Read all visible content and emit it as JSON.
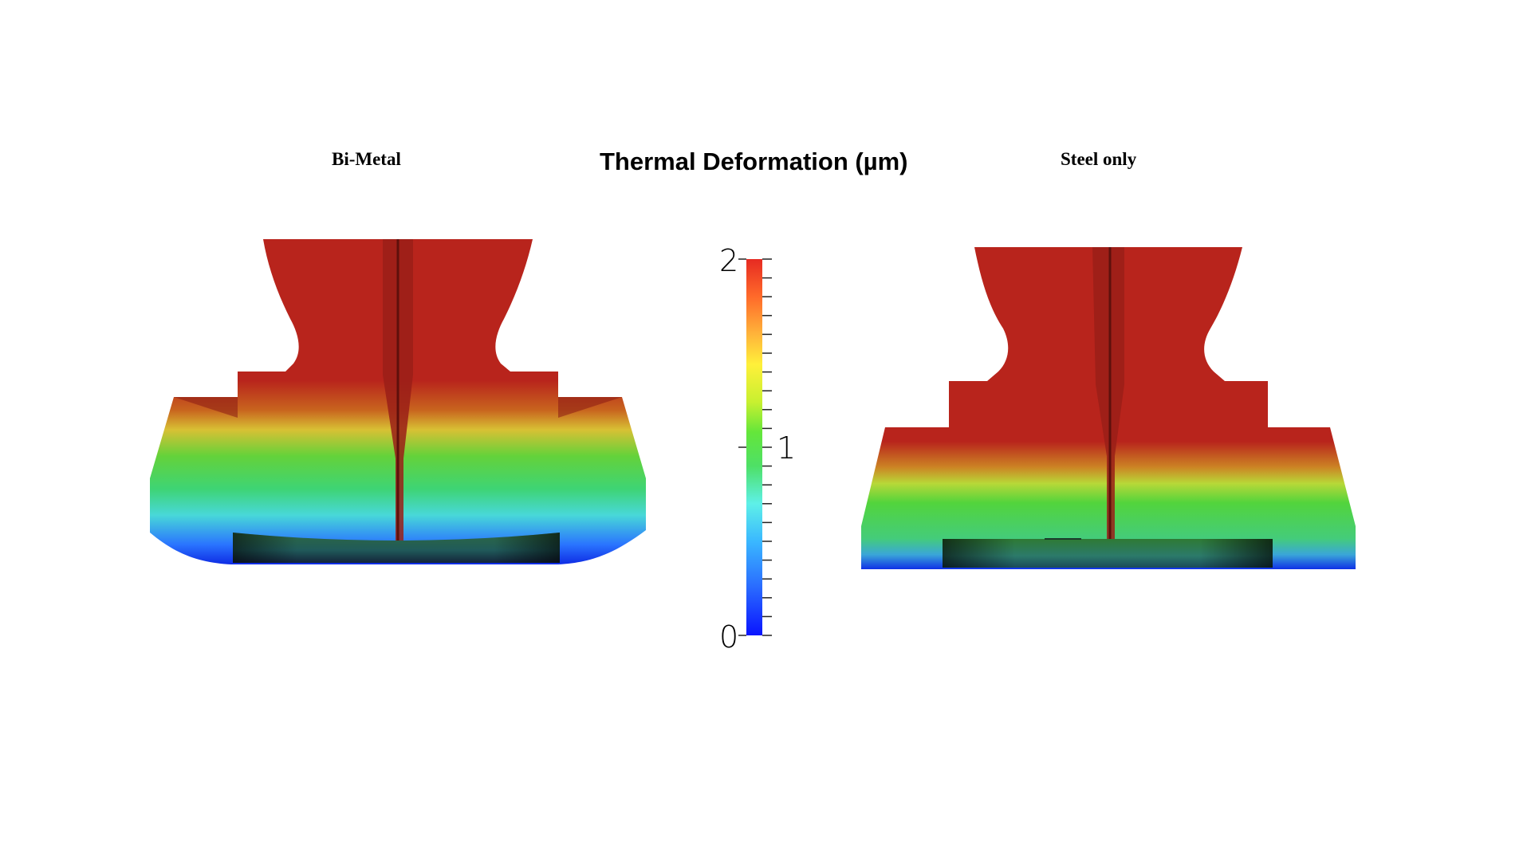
{
  "figure": {
    "title": "Thermal Deformation (µm)",
    "left_label": "Bi-Metal",
    "right_label": "Steel only"
  },
  "colorbar": {
    "min": 0,
    "max": 2,
    "tick_labels": [
      "2",
      "1",
      "0"
    ],
    "tick_values": [
      2,
      1,
      0
    ],
    "minor_tick_count": 21,
    "colormap": [
      "#0a14ff",
      "#2a6cff",
      "#3ab8ff",
      "#5ef0e8",
      "#4ee066",
      "#64e63a",
      "#c8f030",
      "#fff03a",
      "#ffb43a",
      "#ff6a2a",
      "#e62a22"
    ]
  },
  "colors": {
    "body_red": "#b8241c",
    "shadow_red": "#8a1a14",
    "seat_dark": "#1f3a34"
  }
}
